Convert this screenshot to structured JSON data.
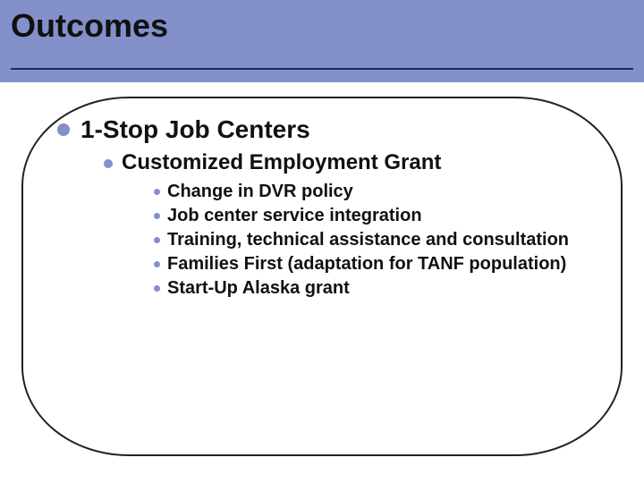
{
  "colors": {
    "header_bg": "#8390c9",
    "bullet": "#8390c9",
    "text": "#111111",
    "underline": "#1f2a55",
    "body_border": "#222222",
    "page_bg": "#ffffff"
  },
  "title": "Outcomes",
  "level1": {
    "text": "1-Stop Job Centers"
  },
  "level2": {
    "text": "Customized Employment Grant"
  },
  "level3": {
    "item0": "Change in DVR policy",
    "item1": "Job center service integration",
    "item2": "Training, technical assistance and consultation",
    "item3": "Families First (adaptation for TANF population)",
    "item4": "Start-Up Alaska grant"
  }
}
